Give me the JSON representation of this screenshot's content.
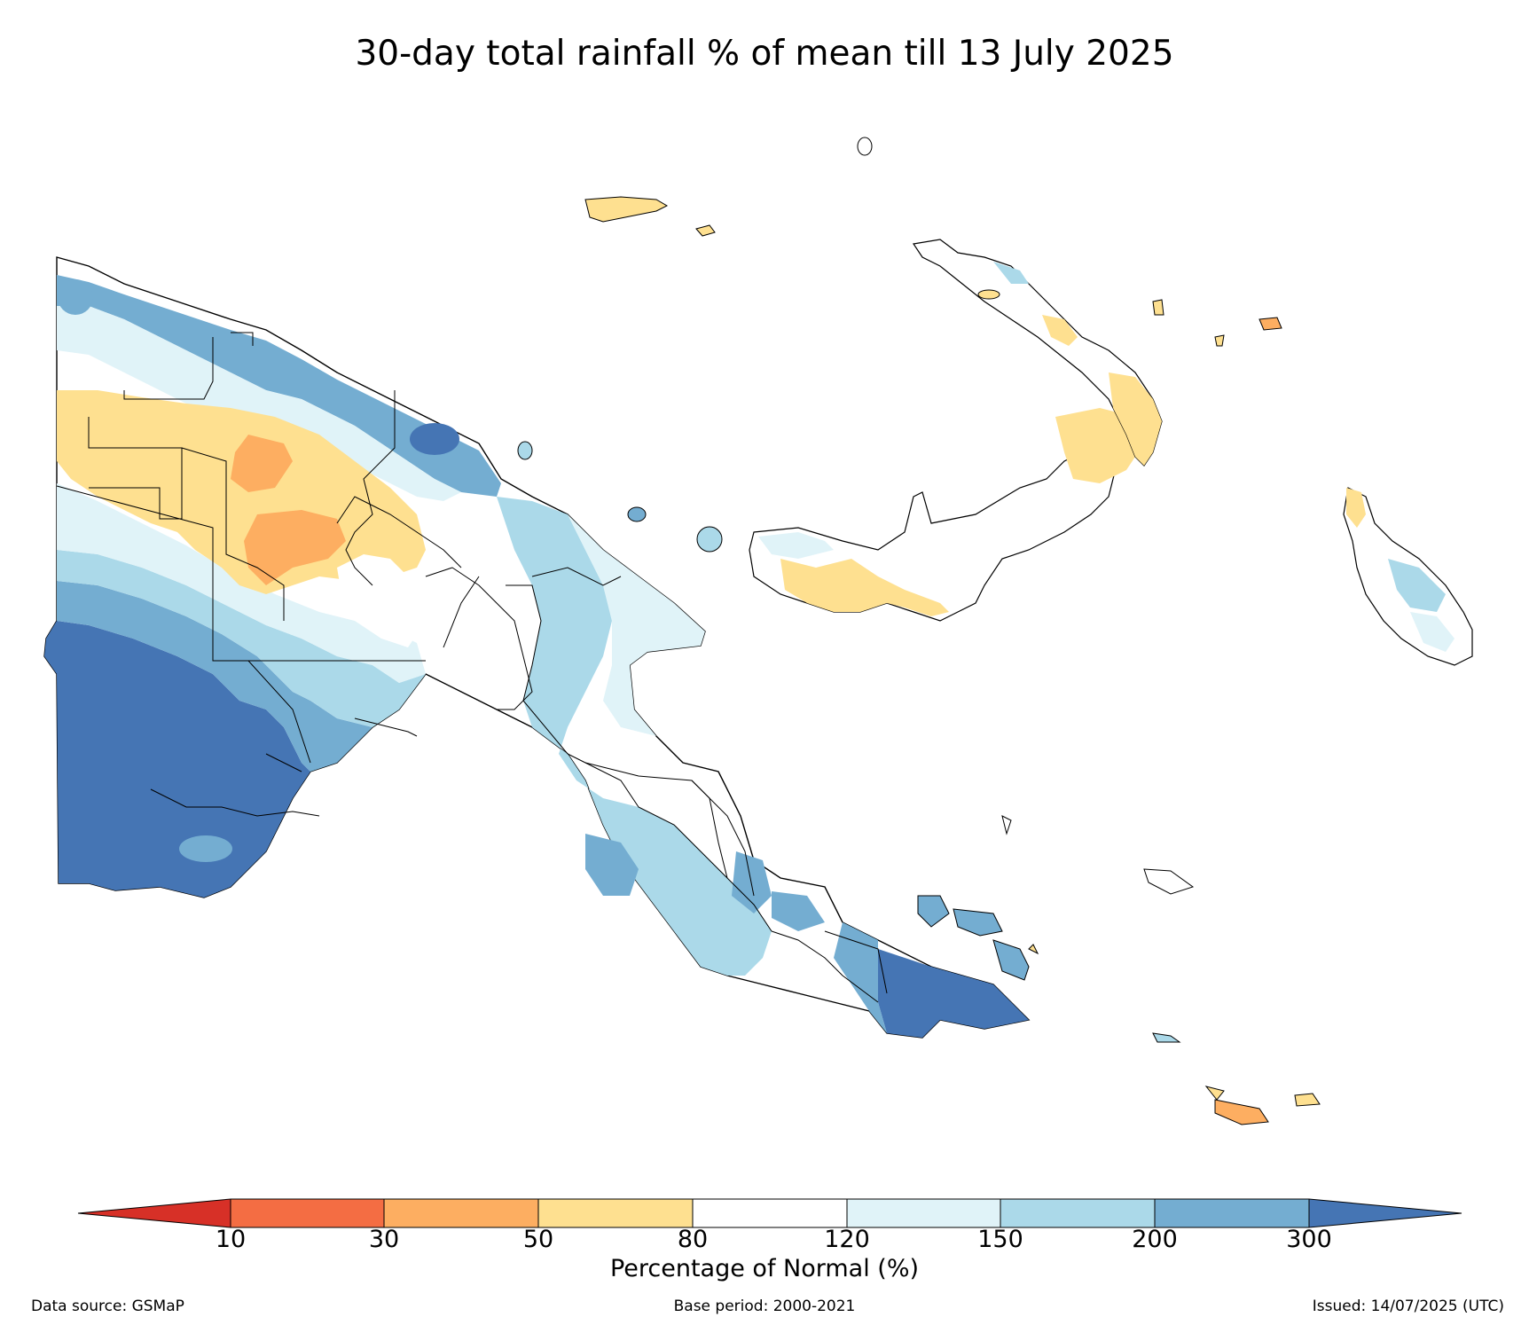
{
  "title": "30-day total rainfall % of mean till 13 July 2025",
  "colorbar": {
    "label": "Percentage of Normal (%)",
    "ticks": [
      "10",
      "30",
      "50",
      "80",
      "120",
      "150",
      "200",
      "300"
    ],
    "colors": {
      "below_10": "#d73027",
      "c10_30": "#f46d43",
      "c30_50": "#fdae61",
      "c50_80": "#fee090",
      "c80_120": "#ffffff",
      "c120_150": "#e0f3f8",
      "c150_200": "#abd9e9",
      "c200_300": "#74add1",
      "above_300": "#4575b4"
    }
  },
  "footer": {
    "source": "Data source: GSMaP",
    "base_period": "Base period: 2000-2021",
    "issued": "Issued: 14/07/2025 (UTC)"
  }
}
